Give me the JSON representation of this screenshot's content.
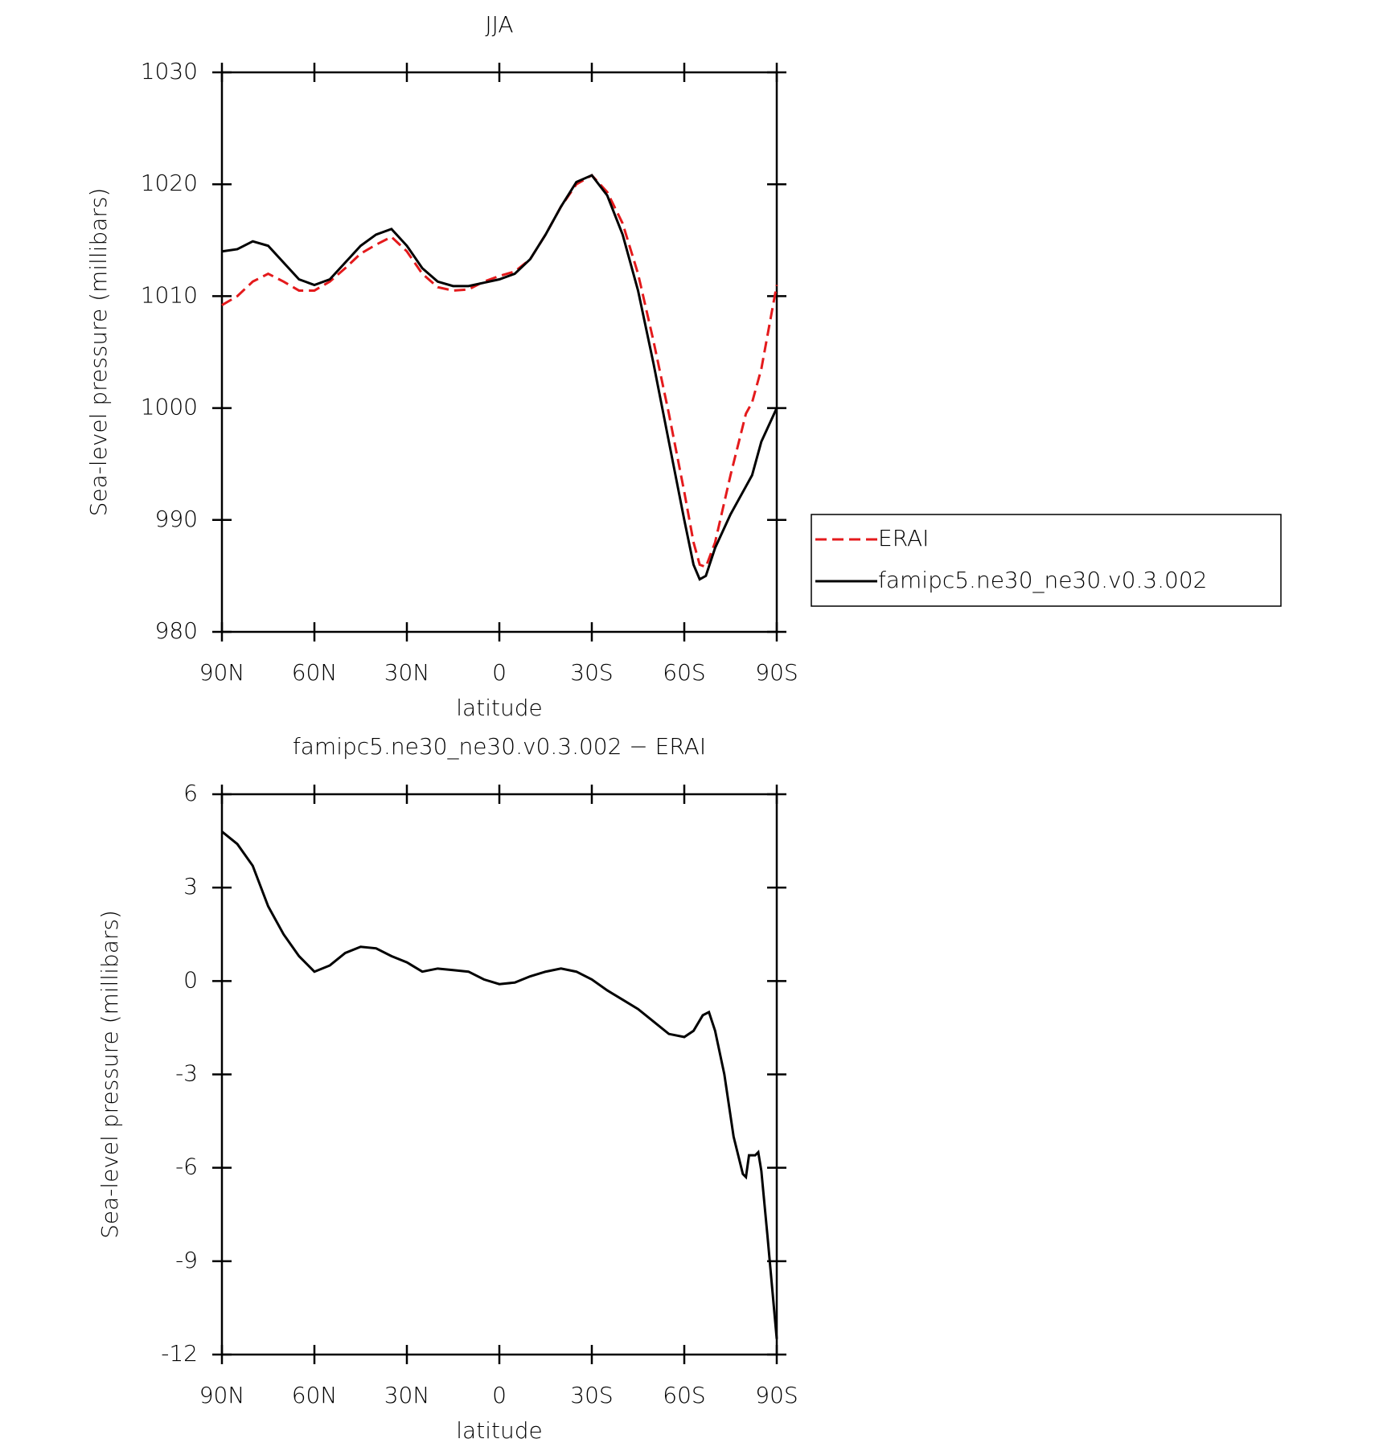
{
  "chart_data": [
    {
      "type": "line",
      "title": "JJA",
      "xlabel": "latitude",
      "ylabel": "Sea-level pressure (millibars)",
      "x": [
        90,
        85,
        80,
        75,
        70,
        65,
        60,
        55,
        50,
        45,
        40,
        35,
        30,
        25,
        20,
        15,
        10,
        5,
        0,
        -5,
        -10,
        -15,
        -20,
        -25,
        -30,
        -35,
        -40,
        -45,
        -50,
        -55,
        -60,
        -63,
        -65,
        -67,
        -70,
        -75,
        -80,
        -82,
        -85,
        -90
      ],
      "xlim": [
        90,
        -90
      ],
      "xticks": [
        {
          "value": 90,
          "label": "90N"
        },
        {
          "value": 60,
          "label": "60N"
        },
        {
          "value": 30,
          "label": "30N"
        },
        0,
        {
          "value": -30,
          "label": "30S"
        },
        {
          "value": -60,
          "label": "60S"
        },
        {
          "value": -90,
          "label": "90S"
        }
      ],
      "ylim": [
        980,
        1030
      ],
      "yticks": [
        980,
        990,
        1000,
        1010,
        1020,
        1030
      ],
      "legend": "right",
      "series": [
        {
          "name": "ERAI",
          "color": "#e41a1c",
          "dash": true,
          "values": [
            1009.2,
            1010,
            1011.3,
            1012,
            1011.3,
            1010.5,
            1010.5,
            1011.3,
            1012.5,
            1013.8,
            1014.6,
            1015.3,
            1014,
            1012,
            1010.8,
            1010.5,
            1010.6,
            1011.3,
            1011.8,
            1012.2,
            1013.3,
            1015.5,
            1018,
            1020,
            1020.8,
            1019.3,
            1016.5,
            1012,
            1006,
            999.5,
            992.5,
            988,
            986,
            985.8,
            988,
            994,
            999.5,
            1000.5,
            1003.5,
            1011
          ]
        },
        {
          "name": "famipc5.ne30_ne30.v0.3.002",
          "color": "#000000",
          "dash": false,
          "values": [
            1014.0,
            1014.2,
            1014.9,
            1014.5,
            1013.0,
            1011.5,
            1011.0,
            1011.5,
            1013.0,
            1014.5,
            1015.5,
            1016.0,
            1014.5,
            1012.5,
            1011.3,
            1010.9,
            1010.9,
            1011.2,
            1011.5,
            1012.0,
            1013.3,
            1015.5,
            1018.0,
            1020.2,
            1020.8,
            1019.0,
            1015.5,
            1010.5,
            1004.0,
            997.0,
            990.0,
            986.0,
            984.7,
            985.0,
            987.5,
            990.5,
            993.0,
            994.0,
            997.0,
            1000.0
          ]
        }
      ]
    },
    {
      "type": "line",
      "title": "famipc5.ne30_ne30.v0.3.002 − ERAI",
      "xlabel": "latitude",
      "ylabel": "Sea-level pressure (millibars)",
      "x": [
        90,
        85,
        80,
        75,
        70,
        65,
        60,
        55,
        50,
        45,
        40,
        35,
        30,
        25,
        20,
        15,
        10,
        5,
        0,
        -5,
        -10,
        -15,
        -20,
        -25,
        -30,
        -35,
        -40,
        -45,
        -50,
        -55,
        -60,
        -63,
        -66,
        -68,
        -70,
        -73,
        -76,
        -79,
        -80,
        -81,
        -83,
        -84,
        -85,
        -87,
        -90
      ],
      "xlim": [
        90,
        -90
      ],
      "xticks": [
        {
          "value": 90,
          "label": "90N"
        },
        {
          "value": 60,
          "label": "60N"
        },
        {
          "value": 30,
          "label": "30N"
        },
        0,
        {
          "value": -30,
          "label": "30S"
        },
        {
          "value": -60,
          "label": "60S"
        },
        {
          "value": -90,
          "label": "90S"
        }
      ],
      "ylim": [
        -12,
        6
      ],
      "yticks": [
        -12,
        -9,
        -6,
        -3,
        0,
        3,
        6
      ],
      "color": "#000000",
      "values": [
        4.8,
        4.4,
        3.7,
        2.4,
        1.5,
        0.8,
        0.3,
        0.5,
        0.9,
        1.1,
        1.05,
        0.8,
        0.6,
        0.3,
        0.4,
        0.35,
        0.3,
        0.05,
        -0.1,
        -0.05,
        0.15,
        0.3,
        0.4,
        0.3,
        0.05,
        -0.3,
        -0.6,
        -0.9,
        -1.3,
        -1.7,
        -1.8,
        -1.6,
        -1.1,
        -1.0,
        -1.6,
        -3.0,
        -5.0,
        -6.2,
        -6.3,
        -5.6,
        -5.6,
        -5.5,
        -6.1,
        -8.2,
        -11.5
      ]
    }
  ]
}
